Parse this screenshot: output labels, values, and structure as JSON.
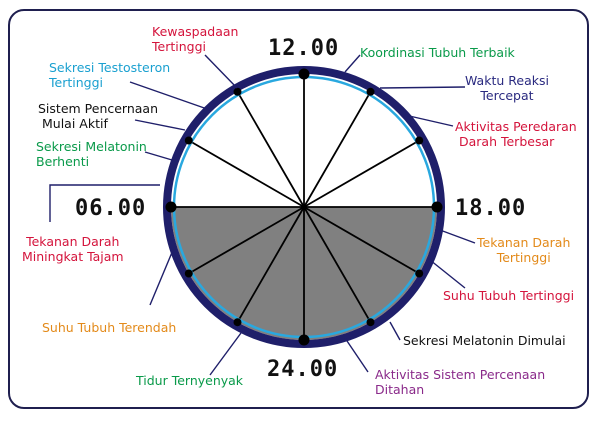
{
  "times": {
    "top": "12.00",
    "left": "06.00",
    "right": "18.00",
    "bottom": "24.00"
  },
  "colors": {
    "outer_ring": "#1f1f6a",
    "inner_ring": "#29a8df",
    "night_fill": "#808080",
    "spoke": "#000000",
    "red": "#d4143c",
    "cyan": "#1aa0d0",
    "black": "#111111",
    "green": "#0a9a4a",
    "navy": "#2a2a80",
    "orange": "#e38a1a",
    "magenta": "#c21a6a",
    "purple": "#8a2a8a"
  },
  "labels": {
    "kewaspadaan": [
      "Kewaspadaan",
      "Tertinggi"
    ],
    "testosteron": [
      "Sekresi Testosteron",
      "Tertinggi"
    ],
    "pencernaan_aktif": [
      "Sistem Pencernaan",
      "Mulai Aktif"
    ],
    "melatonin_berhenti": [
      "Sekresi Melatonin",
      "Berhenti"
    ],
    "tekanan_tajam": [
      "Tekanan Darah",
      "Miningkat Tajam"
    ],
    "suhu_terendah": [
      "Suhu Tubuh Terendah"
    ],
    "tidur": [
      "Tidur Ternyenyak"
    ],
    "koordinasi": [
      "Koordinasi Tubuh Terbaik"
    ],
    "reaksi": [
      "Waktu Reaksi",
      "Tercepat"
    ],
    "peredaran": [
      "Aktivitas Peredaran",
      "Darah Terbesar"
    ],
    "tekanan_tertinggi": [
      "Tekanan Darah",
      "Tertinggi"
    ],
    "suhu_tertinggi": [
      "Suhu Tubuh Tertinggi"
    ],
    "melatonin_dimulai": [
      "Sekresi Melatonin Dimulai"
    ],
    "pencernaan_ditahan": [
      "Aktivitas Sistem Percenaan",
      "Ditahan"
    ]
  }
}
